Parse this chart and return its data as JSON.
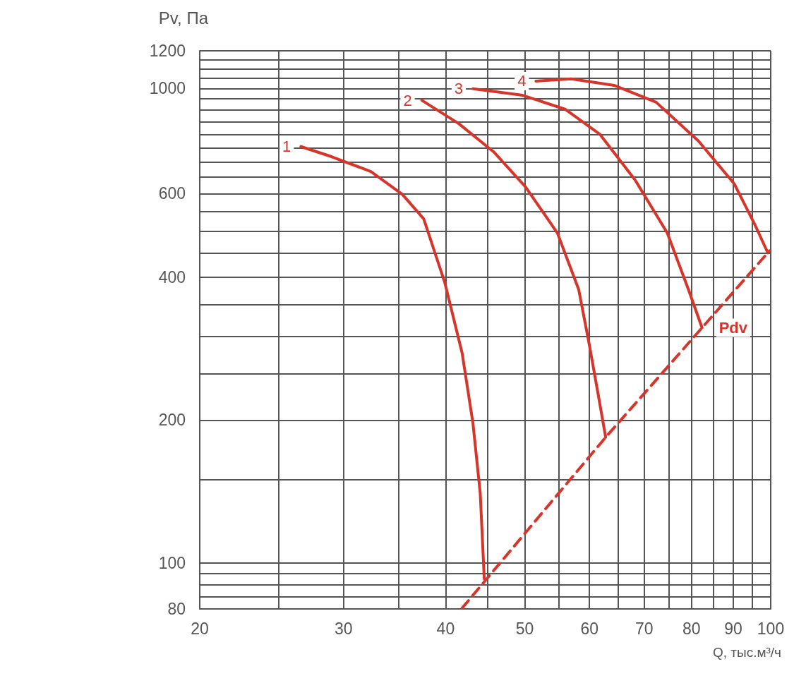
{
  "chart_data": {
    "type": "line",
    "xlabel": "Q, тыс.м³/ч",
    "ylabel": "Pv, Па",
    "log": "xy",
    "grid": true,
    "legend": false,
    "marker": "none",
    "xlim": [
      20,
      100
    ],
    "ylim": [
      80,
      1200
    ],
    "xticks": [
      20,
      {
        "value": 25,
        "label": null
      },
      30,
      {
        "value": 35,
        "label": null
      },
      40,
      {
        "value": 45,
        "label": null
      },
      50,
      {
        "value": 55,
        "label": null
      },
      60,
      {
        "value": 65,
        "label": null
      },
      70,
      {
        "value": 75,
        "label": null
      },
      80,
      {
        "value": 85,
        "label": null
      },
      90,
      {
        "value": 95,
        "label": null
      },
      100
    ],
    "yticks": [
      80,
      {
        "value": 85,
        "label": null
      },
      {
        "value": 90,
        "label": null
      },
      {
        "value": 95,
        "label": null
      },
      100,
      {
        "value": 150,
        "label": null
      },
      200,
      {
        "value": 250,
        "label": null
      },
      {
        "value": 300,
        "label": null
      },
      {
        "value": 350,
        "label": null
      },
      400,
      {
        "value": 450,
        "label": null
      },
      {
        "value": 500,
        "label": null
      },
      {
        "value": 550,
        "label": null
      },
      600,
      {
        "value": 650,
        "label": null
      },
      {
        "value": 700,
        "label": null
      },
      {
        "value": 750,
        "label": null
      },
      {
        "value": 800,
        "label": null
      },
      {
        "value": 850,
        "label": null
      },
      {
        "value": 900,
        "label": null
      },
      {
        "value": 950,
        "label": null
      },
      1000,
      {
        "value": 1050,
        "label": null
      },
      {
        "value": 1100,
        "label": null
      },
      {
        "value": 1150,
        "label": null
      },
      1200
    ],
    "series": [
      {
        "name": "1",
        "color": "#d7342a",
        "line_style": "solid",
        "x": [
          26.6,
          29.0,
          32.4,
          35.4,
          37.6,
          39.9,
          41.9,
          43.2,
          44.1,
          44.6
        ],
        "values": [
          754,
          718,
          668,
          598,
          531,
          390,
          277,
          197,
          140,
          92.6
        ]
      },
      {
        "name": "2",
        "color": "#d7342a",
        "line_style": "solid",
        "x": [
          37.4,
          41.5,
          45.8,
          50.1,
          54.8,
          58.2,
          60,
          61.5,
          62.8
        ],
        "values": [
          944,
          843,
          735,
          620,
          496,
          377,
          287,
          226,
          184
        ]
      },
      {
        "name": "3",
        "color": "#d7342a",
        "line_style": "solid",
        "x": [
          43.2,
          49.7,
          56,
          61.8,
          68.2,
          74.7,
          79.3,
          82.4
        ],
        "values": [
          998,
          967,
          904,
          800,
          642,
          496,
          377,
          313
        ]
      },
      {
        "name": "4",
        "color": "#d7342a",
        "line_style": "solid",
        "x": [
          51.6,
          57,
          64.3,
          72.4,
          81.6,
          90.2,
          95.8,
          99.2
        ],
        "values": [
          1036,
          1047,
          1015,
          935,
          774,
          630,
          513,
          450
        ]
      },
      {
        "name": "Pdv",
        "color": "#d7342a",
        "line_style": "dashed",
        "x": [
          41.9,
          62.8,
          82.4,
          99.7
        ],
        "values": [
          80.3,
          184,
          313,
          455
        ]
      }
    ]
  }
}
